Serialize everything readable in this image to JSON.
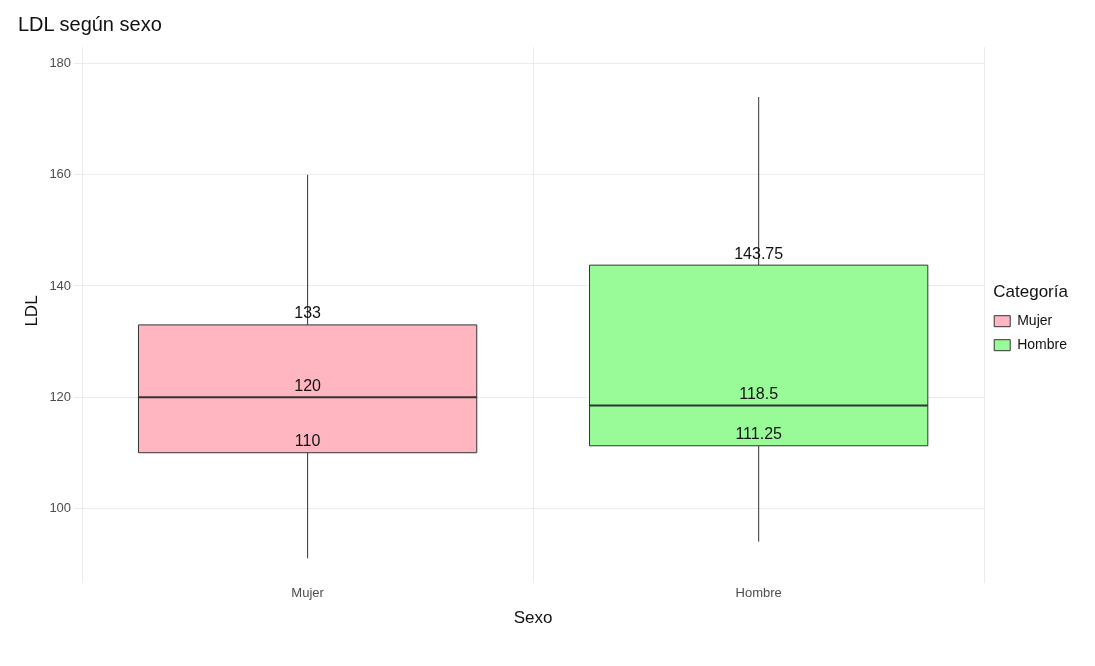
{
  "chart_data": {
    "type": "box",
    "title": "LDL según sexo",
    "xlabel": "Sexo",
    "ylabel": "LDL",
    "legend_title": "Categoría",
    "legend": "right",
    "grid": true,
    "categories": [
      "Mujer",
      "Hombre"
    ],
    "series": [
      {
        "name": "Mujer",
        "color": "#ffb6c1",
        "boxes": [
          {
            "low": 91,
            "q1": 110,
            "median": 120,
            "q3": 133,
            "high": 160
          },
          null
        ]
      },
      {
        "name": "Hombre",
        "color": "#98fb98",
        "boxes": [
          null,
          {
            "low": 94,
            "q1": 111.25,
            "median": 118.5,
            "q3": 143.75,
            "high": 174
          }
        ]
      }
    ],
    "annotations": [
      {
        "text": "110",
        "x": "Mujer",
        "y": 110
      },
      {
        "text": "120",
        "x": "Mujer",
        "y": 120
      },
      {
        "text": "133",
        "x": "Mujer",
        "y": 133
      },
      {
        "text": "111.25",
        "x": "Hombre",
        "y": 111.25
      },
      {
        "text": "118.5",
        "x": "Hombre",
        "y": 118.5
      },
      {
        "text": "143.75",
        "x": "Hombre",
        "y": 143.75
      }
    ],
    "ylim": [
      88,
      183
    ],
    "yticks": [
      100,
      120,
      140,
      160,
      180
    ]
  }
}
